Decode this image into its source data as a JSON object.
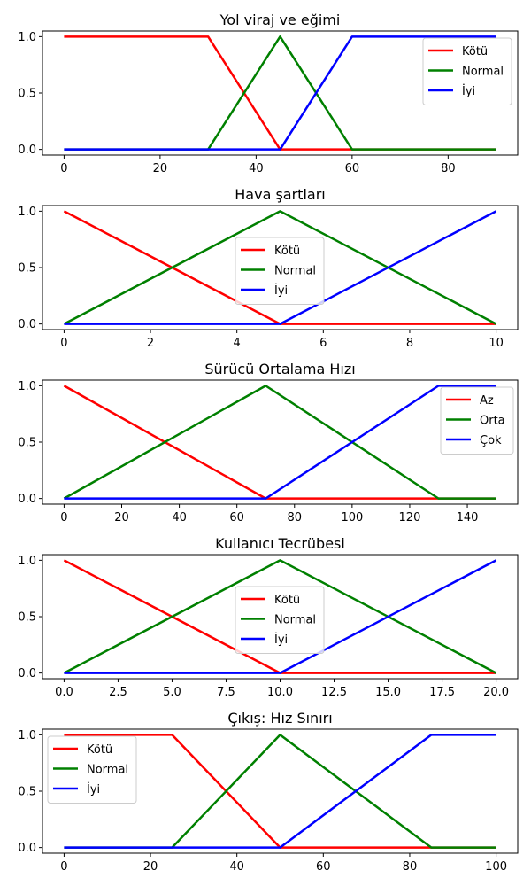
{
  "colors": {
    "red": "#ff0000",
    "green": "#008000",
    "blue": "#0000ff"
  },
  "chart_data": [
    {
      "type": "line",
      "title": "Yol viraj ve eğimi",
      "xlim": [
        -4.5,
        94.5
      ],
      "ylim": [
        -0.05,
        1.05
      ],
      "xticks": [
        0,
        20,
        40,
        60,
        80
      ],
      "xtick_labels": [
        "0",
        "20",
        "40",
        "60",
        "80"
      ],
      "yticks": [
        0,
        0.5,
        1
      ],
      "ytick_labels": [
        "0.0",
        "0.5",
        "1.0"
      ],
      "legend_position": "upper right",
      "series": [
        {
          "name": "Kötü",
          "color": "#ff0000",
          "x": [
            0,
            30,
            45,
            90
          ],
          "y": [
            1,
            1,
            0,
            0
          ]
        },
        {
          "name": "Normal",
          "color": "#008000",
          "x": [
            0,
            30,
            45,
            60,
            90
          ],
          "y": [
            0,
            0,
            1,
            0,
            0
          ]
        },
        {
          "name": "İyi",
          "color": "#0000ff",
          "x": [
            0,
            45,
            60,
            90
          ],
          "y": [
            0,
            0,
            1,
            1
          ]
        }
      ]
    },
    {
      "type": "line",
      "title": "Hava şartları",
      "xlim": [
        -0.5,
        10.5
      ],
      "ylim": [
        -0.05,
        1.05
      ],
      "xticks": [
        0,
        2,
        4,
        6,
        8,
        10
      ],
      "xtick_labels": [
        "0",
        "2",
        "4",
        "6",
        "8",
        "10"
      ],
      "yticks": [
        0,
        0.5,
        1
      ],
      "ytick_labels": [
        "0.0",
        "0.5",
        "1.0"
      ],
      "legend_position": "center",
      "series": [
        {
          "name": "Kötü",
          "color": "#ff0000",
          "x": [
            0,
            5,
            10
          ],
          "y": [
            1,
            0,
            0
          ]
        },
        {
          "name": "Normal",
          "color": "#008000",
          "x": [
            0,
            5,
            10
          ],
          "y": [
            0,
            1,
            0
          ]
        },
        {
          "name": "İyi",
          "color": "#0000ff",
          "x": [
            0,
            5,
            10
          ],
          "y": [
            0,
            0,
            1
          ]
        }
      ]
    },
    {
      "type": "line",
      "title": "Sürücü Ortalama Hızı",
      "xlim": [
        -7.5,
        157.5
      ],
      "ylim": [
        -0.05,
        1.05
      ],
      "xticks": [
        0,
        20,
        40,
        60,
        80,
        100,
        120,
        140
      ],
      "xtick_labels": [
        "0",
        "20",
        "40",
        "60",
        "80",
        "100",
        "120",
        "140"
      ],
      "yticks": [
        0,
        0.5,
        1
      ],
      "ytick_labels": [
        "0.0",
        "0.5",
        "1.0"
      ],
      "legend_position": "upper right",
      "series": [
        {
          "name": "Az",
          "color": "#ff0000",
          "x": [
            0,
            70,
            150
          ],
          "y": [
            1,
            0,
            0
          ]
        },
        {
          "name": "Orta",
          "color": "#008000",
          "x": [
            0,
            70,
            130,
            150
          ],
          "y": [
            0,
            1,
            0,
            0
          ]
        },
        {
          "name": "Çok",
          "color": "#0000ff",
          "x": [
            0,
            70,
            130,
            150
          ],
          "y": [
            0,
            0,
            1,
            1
          ]
        }
      ]
    },
    {
      "type": "line",
      "title": "Kullanıcı Tecrübesi",
      "xlim": [
        -1,
        21
      ],
      "ylim": [
        -0.05,
        1.05
      ],
      "xticks": [
        0,
        2.5,
        5,
        7.5,
        10,
        12.5,
        15,
        17.5,
        20
      ],
      "xtick_labels": [
        "0.0",
        "2.5",
        "5.0",
        "7.5",
        "10.0",
        "12.5",
        "15.0",
        "17.5",
        "20.0"
      ],
      "yticks": [
        0,
        0.5,
        1
      ],
      "ytick_labels": [
        "0.0",
        "0.5",
        "1.0"
      ],
      "legend_position": "center",
      "series": [
        {
          "name": "Kötü",
          "color": "#ff0000",
          "x": [
            0,
            10,
            20
          ],
          "y": [
            1,
            0,
            0
          ]
        },
        {
          "name": "Normal",
          "color": "#008000",
          "x": [
            0,
            10,
            20
          ],
          "y": [
            0,
            1,
            0
          ]
        },
        {
          "name": "İyi",
          "color": "#0000ff",
          "x": [
            0,
            10,
            20
          ],
          "y": [
            0,
            0,
            1
          ]
        }
      ]
    },
    {
      "type": "line",
      "title": "Çıkış: Hız Sınırı",
      "xlim": [
        -5,
        105
      ],
      "ylim": [
        -0.05,
        1.05
      ],
      "xticks": [
        0,
        20,
        40,
        60,
        80,
        100
      ],
      "xtick_labels": [
        "0",
        "20",
        "40",
        "60",
        "80",
        "100"
      ],
      "yticks": [
        0,
        0.5,
        1
      ],
      "ytick_labels": [
        "0.0",
        "0.5",
        "1.0"
      ],
      "legend_position": "upper left",
      "series": [
        {
          "name": "Kötü",
          "color": "#ff0000",
          "x": [
            0,
            25,
            50,
            100
          ],
          "y": [
            1,
            1,
            0,
            0
          ]
        },
        {
          "name": "Normal",
          "color": "#008000",
          "x": [
            0,
            25,
            50,
            85,
            100
          ],
          "y": [
            0,
            0,
            1,
            0,
            0
          ]
        },
        {
          "name": "İyi",
          "color": "#0000ff",
          "x": [
            0,
            50,
            85,
            100
          ],
          "y": [
            0,
            0,
            1,
            1
          ]
        }
      ]
    }
  ]
}
